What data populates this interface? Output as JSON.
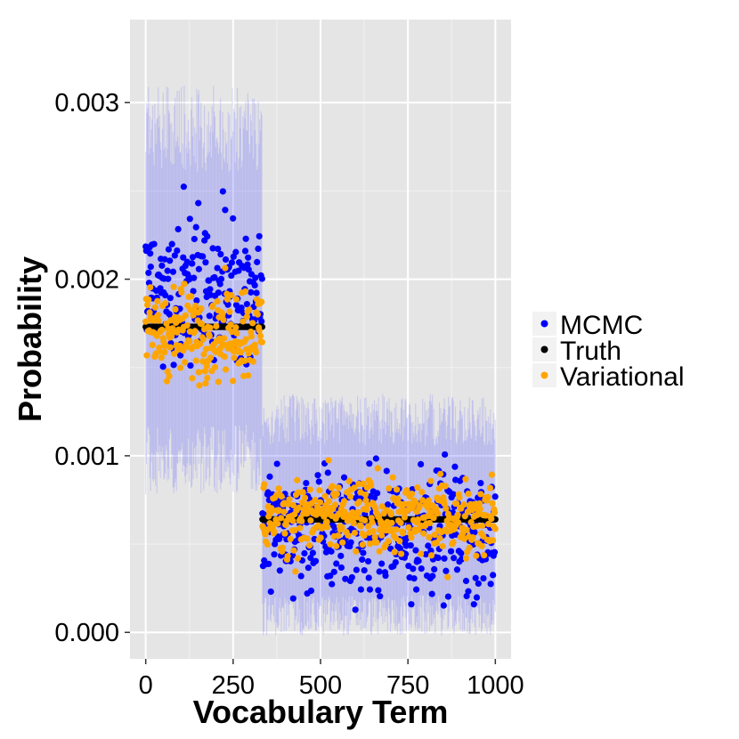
{
  "chart_data": {
    "type": "scatter",
    "title": "",
    "xlabel": "Vocabulary Term",
    "ylabel": "Probability",
    "xlim": [
      -45,
      1045
    ],
    "ylim": [
      -0.00015,
      0.00347
    ],
    "x_ticks": [
      0,
      250,
      500,
      750,
      1000
    ],
    "x_tick_labels": [
      "0",
      "250",
      "500",
      "750",
      "1000"
    ],
    "y_ticks": [
      0.0,
      0.001,
      0.002,
      0.003
    ],
    "y_tick_labels": [
      "0.000",
      "0.001",
      "0.002",
      "0.003"
    ],
    "grid": true,
    "legend_position": "right",
    "legend": [
      "MCMC",
      "Truth",
      "Variational"
    ],
    "colors": {
      "MCMC": "#0000ff",
      "Truth": "#000000",
      "Variational": "#ffa500",
      "interval": "#6b6bff",
      "panel": "#e5e5e5",
      "grid": "#ffffff"
    },
    "series": [
      {
        "name": "Truth",
        "segments": [
          {
            "x_range": [
              0,
              333
            ],
            "value": 0.00173
          },
          {
            "x_range": [
              334,
              1000
            ],
            "value": 0.00064
          }
        ]
      },
      {
        "name": "MCMC",
        "segments": [
          {
            "x_range": [
              0,
              333
            ],
            "mean": 0.00195,
            "spread": 0.00022,
            "interval_low": 0.0009,
            "interval_high": 0.0031
          },
          {
            "x_range": [
              334,
              1000
            ],
            "mean": 0.00058,
            "spread": 0.0002,
            "interval_low": 5e-05,
            "interval_high": 0.00135
          }
        ]
      },
      {
        "name": "Variational",
        "segments": [
          {
            "x_range": [
              0,
              333
            ],
            "mean": 0.0017,
            "spread": 0.00014
          },
          {
            "x_range": [
              334,
              1000
            ],
            "mean": 0.00065,
            "spread": 0.00012
          }
        ]
      }
    ]
  }
}
